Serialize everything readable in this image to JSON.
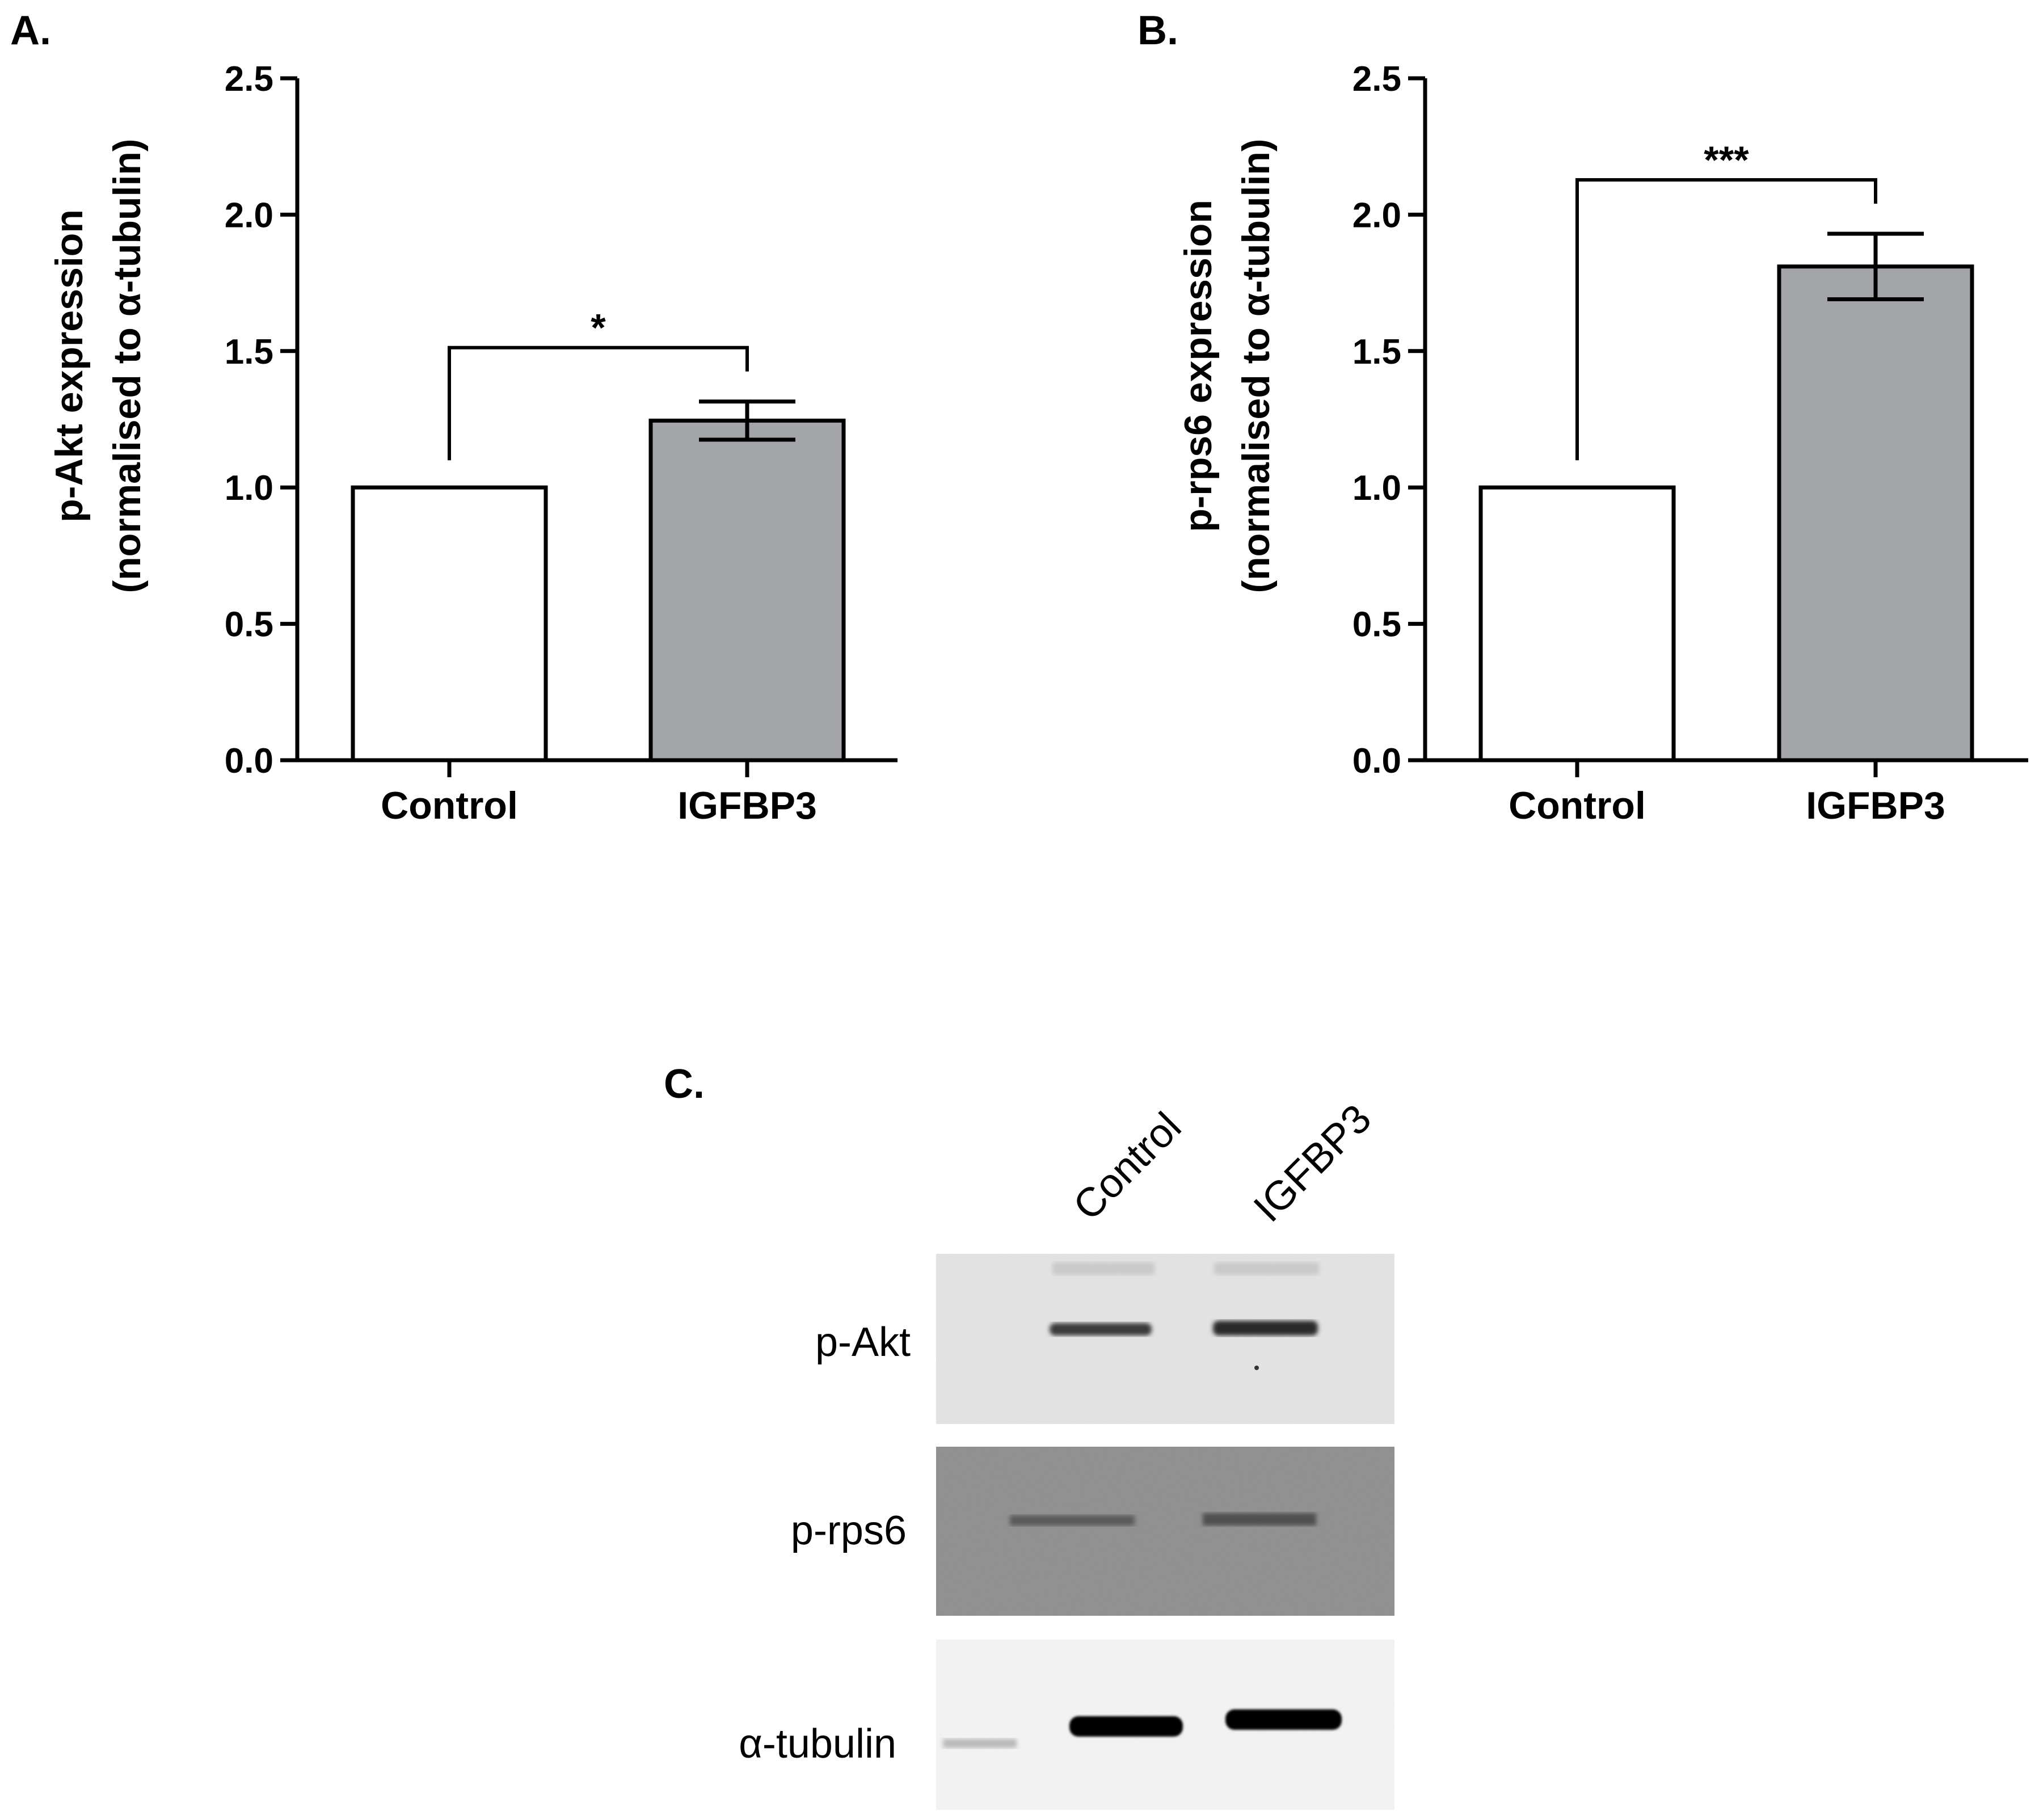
{
  "chart_data": [
    {
      "type": "bar",
      "panel_label": "A.",
      "categories": [
        "Control",
        "IGFBP3"
      ],
      "values": [
        1.0,
        1.245
      ],
      "error": [
        0,
        0.07
      ],
      "ylabel_line1": "p-Akt expression",
      "ylabel_line2": "(normalised to α-tubulin)",
      "ylim": [
        0,
        2.5
      ],
      "yticks": [
        "0.0",
        "0.5",
        "1.0",
        "1.5",
        "2.0",
        "2.5"
      ],
      "significance": "*",
      "colors": [
        "#ffffff",
        "#a4a5a9"
      ]
    },
    {
      "type": "bar",
      "panel_label": "B.",
      "categories": [
        "Control",
        "IGFBP3"
      ],
      "values": [
        1.0,
        1.81
      ],
      "error": [
        0,
        0.12
      ],
      "ylabel_line1": "p-rps6 expression",
      "ylabel_line2": "(normalised to α-tubulin)",
      "ylim": [
        0,
        2.5
      ],
      "yticks": [
        "0.0",
        "0.5",
        "1.0",
        "1.5",
        "2.0",
        "2.5"
      ],
      "significance": "***",
      "colors": [
        "#ffffff",
        "#a4a5a9"
      ]
    }
  ],
  "blot": {
    "panel_label": "C.",
    "lanes": [
      "Control",
      "IGFBP3"
    ],
    "rows": [
      "p-Akt",
      "p-rps6",
      "α-tubulin"
    ]
  }
}
